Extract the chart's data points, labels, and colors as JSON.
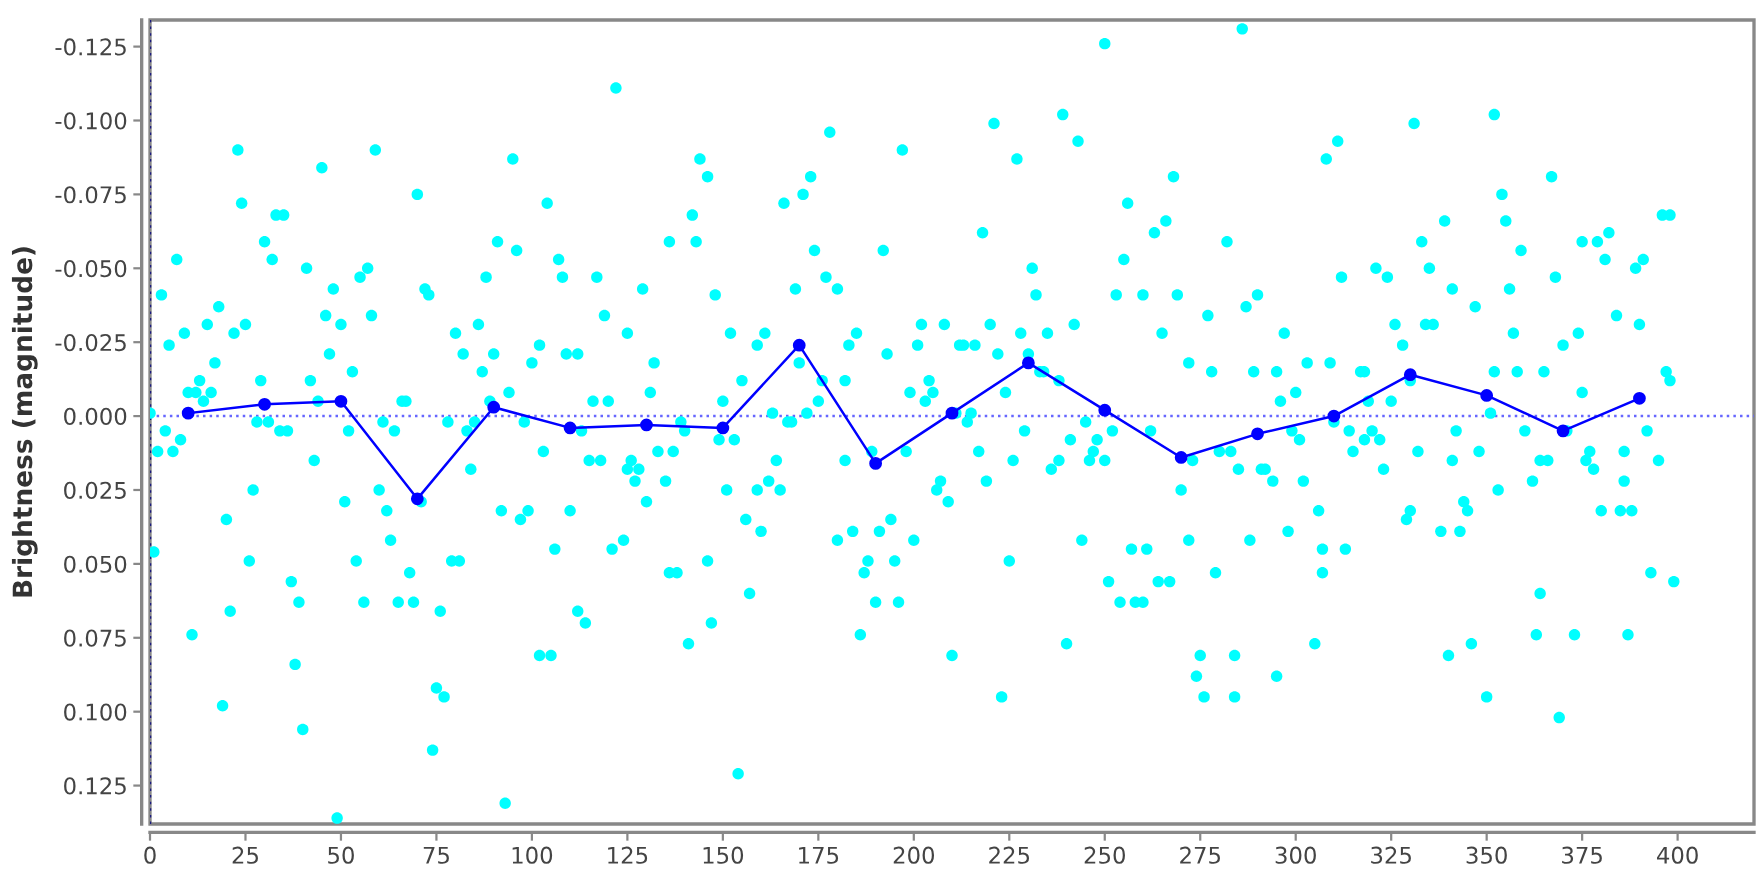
{
  "chart_data": {
    "type": "scatter",
    "ylabel": "Brightness (magnitude)",
    "xlim": [
      0,
      420
    ],
    "ylim": [
      0.138,
      -0.134
    ],
    "xticks": [
      0,
      25,
      50,
      75,
      100,
      125,
      150,
      175,
      200,
      225,
      250,
      275,
      300,
      325,
      350,
      375,
      400
    ],
    "yticks": [
      -0.125,
      {
        "value": -0.1,
        "label": "-0.100"
      },
      -0.075,
      {
        "value": -0.05,
        "label": "-0.050"
      },
      -0.025,
      {
        "value": 0,
        "label": "0.000"
      },
      0.025,
      {
        "value": 0.05,
        "label": "0.050"
      },
      0.075,
      {
        "value": 0.1,
        "label": "0.100"
      },
      0.125
    ],
    "ref_lines": [
      {
        "axis": "y",
        "value": 0,
        "color": "#6666ff",
        "line_style": "dotted"
      },
      {
        "axis": "x",
        "value": 0,
        "color": "#1a1a80",
        "line_style": "dotted"
      }
    ],
    "series": [
      {
        "color": "#00ffff",
        "marker": "circle",
        "x": [
          0,
          3,
          5,
          7,
          9,
          10,
          12,
          13,
          14,
          15,
          16,
          17,
          18,
          22,
          23,
          24,
          25,
          28,
          29,
          30,
          31,
          32,
          33,
          35,
          41,
          42,
          44,
          45,
          46,
          47,
          48,
          50,
          53,
          55,
          57,
          58,
          59,
          61,
          66,
          67,
          70,
          72,
          73,
          78,
          80,
          82,
          85,
          86,
          87,
          88,
          89,
          90,
          91,
          94,
          95,
          96,
          98,
          100,
          102,
          104,
          107,
          108,
          109,
          112,
          116,
          117,
          119,
          120,
          122,
          125,
          129,
          131,
          132,
          136,
          139,
          4,
          2,
          6,
          8,
          1,
          11,
          19,
          20,
          21,
          26,
          27,
          34,
          36,
          37,
          38,
          39,
          40,
          43,
          49,
          51,
          52,
          54,
          56,
          60,
          62,
          63,
          64,
          65,
          68,
          69,
          71,
          74,
          75,
          76,
          77,
          79,
          81,
          84,
          83,
          92,
          93,
          97,
          99,
          102,
          103,
          105,
          106,
          110,
          112,
          113,
          114,
          115,
          118,
          121,
          124,
          125,
          126,
          127,
          128,
          130,
          133,
          135,
          136,
          137,
          138,
          142,
          143,
          144,
          146,
          148,
          150,
          152,
          155,
          159,
          161,
          163,
          166,
          167,
          168,
          169,
          170,
          171,
          172,
          173,
          174,
          175,
          176,
          177,
          178,
          180,
          182,
          183,
          185,
          192,
          193,
          197,
          199,
          201,
          202,
          203,
          204,
          205,
          208,
          211,
          212,
          213,
          214,
          215,
          216,
          218,
          220,
          221,
          222,
          224,
          227,
          228,
          230,
          231,
          232,
          233,
          234,
          235,
          238,
          239,
          242,
          243,
          245,
          250,
          253,
          255,
          256,
          260,
          263,
          265,
          266,
          268,
          269,
          272,
          277,
          278,
          140,
          149,
          153,
          151,
          141,
          146,
          147,
          154,
          156,
          157,
          159,
          160,
          162,
          164,
          165,
          180,
          182,
          184,
          186,
          187,
          188,
          189,
          190,
          191,
          194,
          195,
          196,
          198,
          200,
          206,
          207,
          209,
          210,
          217,
          219,
          223,
          225,
          226,
          229,
          236,
          238,
          240,
          241,
          244,
          246,
          247,
          248,
          250,
          251,
          252,
          254,
          257,
          258,
          260,
          261,
          262,
          264,
          267,
          270,
          272,
          273,
          275,
          274,
          276,
          279,
          280,
          286,
          282,
          283,
          284,
          284,
          285,
          287,
          288,
          289,
          290,
          291,
          292,
          294,
          295,
          295,
          296,
          297,
          298,
          299,
          300,
          301,
          302,
          303,
          305,
          306,
          307,
          307,
          308,
          309,
          310,
          311,
          312,
          313,
          314,
          315,
          317,
          318,
          318,
          319,
          320,
          321,
          322,
          323,
          324,
          325,
          326,
          328,
          329,
          330,
          330,
          331,
          332,
          333,
          334,
          335,
          336,
          338,
          339,
          340,
          341,
          341,
          342,
          343,
          344,
          345,
          346,
          347,
          348,
          350,
          351,
          352,
          352,
          353,
          354,
          355,
          356,
          357,
          358,
          359,
          360,
          362,
          363,
          364,
          364,
          365,
          366,
          367,
          368,
          369,
          370,
          371,
          373,
          374,
          375,
          375,
          376,
          377,
          378,
          379,
          380,
          381,
          382,
          384,
          385,
          386,
          386,
          387,
          388,
          389,
          390,
          391,
          392,
          393,
          395,
          396,
          397,
          398,
          398,
          399
        ],
        "values": [
          -0.001,
          -0.041,
          -0.024,
          -0.053,
          -0.028,
          -0.008,
          -0.008,
          -0.012,
          -0.005,
          -0.031,
          -0.008,
          -0.018,
          -0.037,
          -0.028,
          -0.09,
          -0.072,
          -0.031,
          0.002,
          -0.012,
          -0.059,
          0.002,
          -0.053,
          -0.068,
          -0.068,
          -0.05,
          -0.012,
          -0.005,
          -0.084,
          -0.034,
          -0.021,
          -0.043,
          -0.031,
          -0.015,
          -0.047,
          -0.05,
          -0.034,
          -0.09,
          0.002,
          -0.005,
          -0.005,
          -0.075,
          -0.043,
          -0.041,
          0.002,
          -0.028,
          -0.021,
          0.002,
          -0.031,
          -0.015,
          -0.047,
          -0.005,
          -0.021,
          -0.059,
          -0.008,
          -0.087,
          -0.056,
          0.002,
          -0.018,
          -0.024,
          -0.072,
          -0.053,
          -0.047,
          -0.021,
          -0.021,
          -0.005,
          -0.047,
          -0.034,
          -0.005,
          -0.111,
          -0.028,
          -0.043,
          -0.008,
          -0.018,
          -0.059,
          0.002,
          0.005,
          0.012,
          0.012,
          0.008,
          0.046,
          0.074,
          0.098,
          0.035,
          0.066,
          0.049,
          0.025,
          0.005,
          0.005,
          0.056,
          0.084,
          0.063,
          0.106,
          0.015,
          0.136,
          0.029,
          0.005,
          0.049,
          0.063,
          0.025,
          0.032,
          0.042,
          0.005,
          0.063,
          0.053,
          0.063,
          0.029,
          0.113,
          0.092,
          0.066,
          0.095,
          0.049,
          0.049,
          0.018,
          0.005,
          0.032,
          0.131,
          0.035,
          0.032,
          0.081,
          0.012,
          0.081,
          0.045,
          0.032,
          0.066,
          0.005,
          0.07,
          0.015,
          0.015,
          0.045,
          0.042,
          0.018,
          0.015,
          0.022,
          0.018,
          0.029,
          0.012,
          0.022,
          0.053,
          0.012,
          0.053,
          -0.068,
          -0.059,
          -0.087,
          -0.081,
          -0.041,
          -0.005,
          -0.028,
          -0.012,
          -0.024,
          -0.028,
          -0.001,
          -0.072,
          0.002,
          0.002,
          -0.043,
          -0.018,
          -0.075,
          -0.001,
          -0.081,
          -0.056,
          -0.005,
          -0.012,
          -0.047,
          -0.096,
          -0.043,
          -0.012,
          -0.024,
          -0.028,
          -0.056,
          -0.021,
          -0.09,
          -0.008,
          -0.024,
          -0.031,
          -0.005,
          -0.012,
          -0.008,
          -0.031,
          -0.001,
          -0.024,
          -0.024,
          0.002,
          -0.001,
          -0.024,
          -0.062,
          -0.031,
          -0.099,
          -0.021,
          -0.008,
          -0.087,
          -0.028,
          -0.021,
          -0.05,
          -0.041,
          -0.015,
          -0.015,
          -0.028,
          -0.012,
          -0.102,
          -0.031,
          -0.093,
          0.002,
          -0.126,
          -0.041,
          -0.053,
          -0.072,
          -0.041,
          -0.062,
          -0.028,
          -0.066,
          -0.081,
          -0.041,
          -0.018,
          -0.034,
          -0.015,
          0.005,
          0.008,
          0.008,
          0.025,
          0.077,
          0.049,
          0.07,
          0.121,
          0.035,
          0.06,
          0.025,
          0.039,
          0.022,
          0.015,
          0.025,
          0.042,
          0.015,
          0.039,
          0.074,
          0.053,
          0.049,
          0.012,
          0.063,
          0.039,
          0.035,
          0.049,
          0.063,
          0.012,
          0.042,
          0.025,
          0.022,
          0.029,
          0.081,
          0.012,
          0.022,
          0.095,
          0.049,
          0.015,
          0.005,
          0.018,
          0.015,
          0.077,
          0.008,
          0.042,
          0.015,
          0.012,
          0.008,
          0.015,
          0.056,
          0.005,
          0.063,
          0.045,
          0.063,
          0.063,
          0.045,
          0.005,
          0.056,
          0.056,
          0.025,
          0.042,
          0.015,
          0.081,
          0.088,
          0.095,
          0.053,
          0.012,
          -0.131,
          -0.059,
          0.012,
          0.081,
          0.095,
          0.018,
          -0.037,
          0.042,
          -0.015,
          -0.041,
          0.018,
          0.018,
          0.022,
          0.088,
          -0.015,
          -0.005,
          -0.028,
          0.039,
          0.005,
          -0.008,
          0.008,
          0.022,
          -0.018,
          0.077,
          0.032,
          0.053,
          0.045,
          -0.087,
          -0.018,
          0.002,
          -0.093,
          -0.047,
          0.045,
          0.005,
          0.012,
          -0.015,
          -0.015,
          0.008,
          -0.005,
          0.005,
          -0.05,
          0.008,
          0.018,
          -0.047,
          -0.005,
          -0.031,
          -0.024,
          0.035,
          -0.012,
          0.032,
          -0.099,
          0.012,
          -0.059,
          -0.031,
          -0.05,
          -0.031,
          0.039,
          -0.066,
          0.081,
          0.015,
          -0.043,
          0.005,
          0.039,
          0.029,
          0.032,
          0.077,
          -0.037,
          0.012,
          0.095,
          -0.001,
          -0.015,
          -0.102,
          0.025,
          -0.075,
          -0.066,
          -0.043,
          -0.028,
          -0.015,
          -0.056,
          0.005,
          0.022,
          0.074,
          0.06,
          0.015,
          -0.015,
          0.015,
          -0.081,
          -0.047,
          0.102,
          -0.024,
          0.005,
          0.074,
          -0.028,
          -0.059,
          -0.008,
          0.015,
          0.012,
          0.018,
          -0.059,
          0.032,
          -0.053,
          -0.062,
          -0.034,
          0.032,
          0.022,
          0.012,
          0.074,
          0.032,
          -0.05,
          -0.031,
          -0.053,
          0.005,
          0.053,
          0.015,
          -0.068,
          -0.015,
          -0.068,
          -0.012,
          0.056
        ]
      },
      {
        "type": "line",
        "color": "#0000ff",
        "marker": "circle",
        "line_style": "solid",
        "x": [
          10,
          30,
          50,
          70,
          90,
          110,
          130,
          150,
          170,
          190,
          210,
          230,
          250,
          270,
          290,
          310,
          330,
          350,
          370,
          390
        ],
        "values": [
          -0.001,
          -0.004,
          -0.005,
          0.028,
          -0.003,
          0.004,
          0.003,
          0.004,
          -0.024,
          0.016,
          -0.001,
          -0.018,
          -0.002,
          0.014,
          0.006,
          0.0,
          -0.014,
          -0.007,
          0.005,
          -0.006
        ]
      }
    ]
  }
}
